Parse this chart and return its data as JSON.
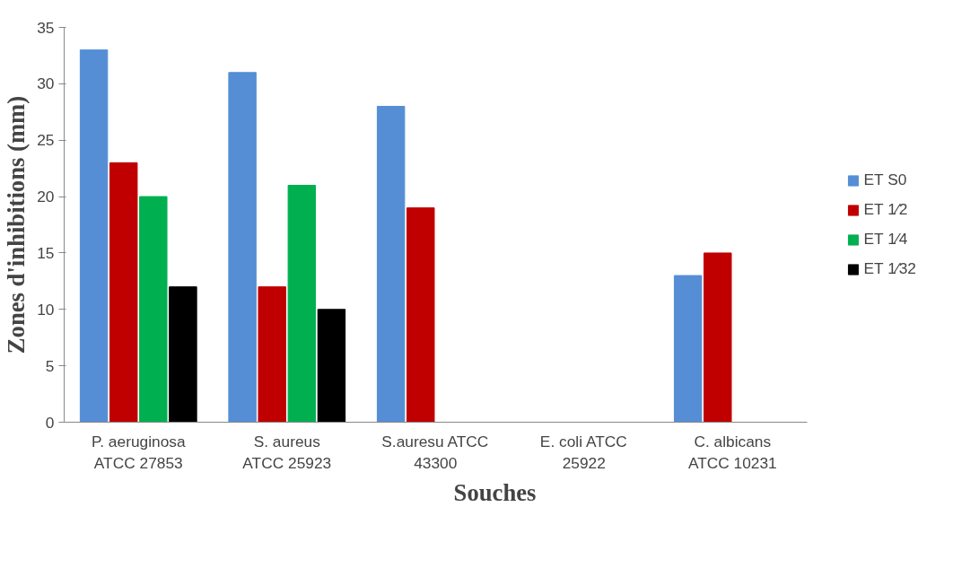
{
  "chart_data": {
    "type": "bar",
    "xlabel": "Souches",
    "ylabel": "Zones d'inhibitions (mm)",
    "categories": [
      "P. aeruginosa\nATCC 27853",
      "S. aureus\nATCC 25923",
      "S.auresu ATCC\n43300",
      "E. coli ATCC\n25922",
      "C. albicans\nATCC 10231"
    ],
    "series": [
      {
        "name": "ET S0",
        "color": "#558ed5",
        "values": [
          33,
          31,
          28,
          null,
          13
        ]
      },
      {
        "name": "ET 1⁄2",
        "color": "#c00000",
        "values": [
          23,
          12,
          19,
          null,
          15
        ]
      },
      {
        "name": "ET 1⁄4",
        "color": "#00b050",
        "values": [
          20,
          21,
          null,
          null,
          null
        ]
      },
      {
        "name": "ET 1⁄32",
        "color": "#000000",
        "values": [
          12,
          10,
          null,
          null,
          null
        ]
      }
    ],
    "ylim": [
      0,
      35
    ],
    "yticks": [
      0,
      5,
      10,
      15,
      20,
      25,
      30,
      35
    ],
    "grid": false,
    "legend": "right"
  }
}
